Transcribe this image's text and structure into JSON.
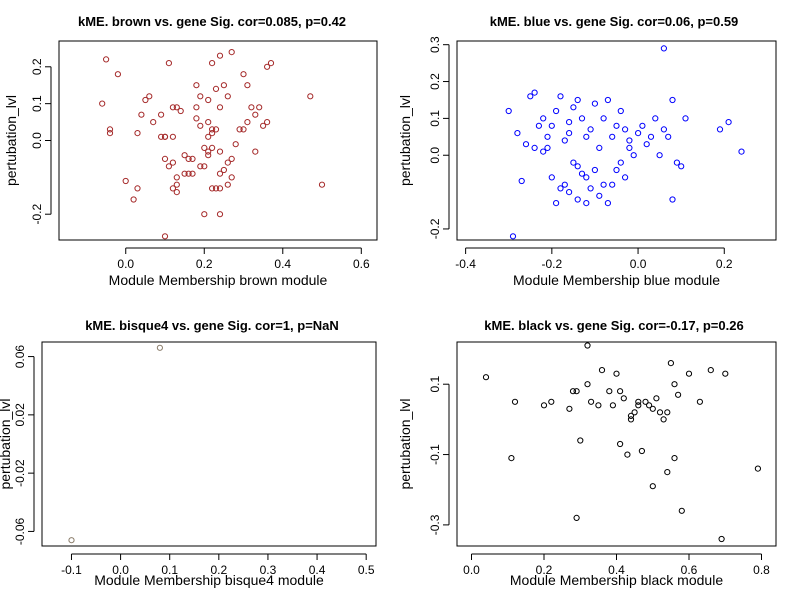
{
  "chart_data": [
    {
      "type": "scatter",
      "title": "kME. brown vs. gene Sig. cor=0.085, p=0.42",
      "xlabel": "Module Membership  brown module",
      "ylabel": "pertubation_lvl",
      "xlim": [
        -0.17,
        0.64
      ],
      "ylim": [
        -0.27,
        0.27
      ],
      "xticks": [
        0.0,
        0.2,
        0.4,
        0.6
      ],
      "xtick_labels": [
        "0.0",
        "0.2",
        "0.4",
        "0.6"
      ],
      "yticks": [
        -0.2,
        0.0,
        0.1,
        0.2
      ],
      "ytick_labels": [
        "-0.2",
        "0.0",
        "0.1",
        "0.2"
      ],
      "grid": false,
      "point_color": "#a52a2a",
      "points": [
        [
          -0.05,
          0.22
        ],
        [
          -0.02,
          0.18
        ],
        [
          -0.06,
          0.1
        ],
        [
          -0.04,
          0.03
        ],
        [
          -0.04,
          0.02
        ],
        [
          0.03,
          0.02
        ],
        [
          0.04,
          0.07
        ],
        [
          0.05,
          0.11
        ],
        [
          0.07,
          0.05
        ],
        [
          0.09,
          0.07
        ],
        [
          0.09,
          0.01
        ],
        [
          0.1,
          0.01
        ],
        [
          0.1,
          0.01
        ],
        [
          0.06,
          0.12
        ],
        [
          0.11,
          0.21
        ],
        [
          0.12,
          0.09
        ],
        [
          0.13,
          0.09
        ],
        [
          0.12,
          0.01
        ],
        [
          0.14,
          0.08
        ],
        [
          0.15,
          -0.04
        ],
        [
          0.16,
          -0.05
        ],
        [
          0.17,
          -0.05
        ],
        [
          0.18,
          0.09
        ],
        [
          0.18,
          0.06
        ],
        [
          0.19,
          0.12
        ],
        [
          0.18,
          0.15
        ],
        [
          0.19,
          0.04
        ],
        [
          0.2,
          -0.02
        ],
        [
          0.21,
          0.05
        ],
        [
          0.21,
          0.11
        ],
        [
          0.22,
          0.21
        ],
        [
          0.23,
          0.14
        ],
        [
          0.22,
          0.03
        ],
        [
          0.21,
          0.01
        ],
        [
          0.22,
          0.02
        ],
        [
          0.24,
          0.09
        ],
        [
          0.24,
          0.23
        ],
        [
          0.25,
          0.15
        ],
        [
          0.26,
          0.12
        ],
        [
          0.24,
          -0.03
        ],
        [
          0.23,
          0.03
        ],
        [
          0.22,
          -0.02
        ],
        [
          0.21,
          -0.03
        ],
        [
          0.21,
          -0.04
        ],
        [
          0.19,
          -0.07
        ],
        [
          0.2,
          -0.07
        ],
        [
          0.17,
          -0.09
        ],
        [
          0.16,
          -0.09
        ],
        [
          0.15,
          -0.09
        ],
        [
          0.13,
          -0.1
        ],
        [
          0.12,
          -0.06
        ],
        [
          0.11,
          -0.07
        ],
        [
          0.13,
          -0.12
        ],
        [
          0.12,
          -0.13
        ],
        [
          0.13,
          -0.14
        ],
        [
          0.1,
          -0.05
        ],
        [
          0.02,
          -0.16
        ],
        [
          0.0,
          -0.11
        ],
        [
          0.1,
          -0.26
        ],
        [
          0.03,
          -0.13
        ],
        [
          0.22,
          -0.13
        ],
        [
          0.23,
          -0.13
        ],
        [
          0.24,
          -0.13
        ],
        [
          0.26,
          -0.12
        ],
        [
          0.27,
          -0.1
        ],
        [
          0.24,
          -0.09
        ],
        [
          0.25,
          -0.08
        ],
        [
          0.26,
          -0.06
        ],
        [
          0.27,
          -0.05
        ],
        [
          0.28,
          -0.01
        ],
        [
          0.29,
          0.03
        ],
        [
          0.3,
          0.03
        ],
        [
          0.31,
          0.05
        ],
        [
          0.32,
          0.09
        ],
        [
          0.33,
          0.07
        ],
        [
          0.34,
          0.09
        ],
        [
          0.33,
          -0.03
        ],
        [
          0.35,
          0.04
        ],
        [
          0.36,
          0.05
        ],
        [
          0.36,
          0.2
        ],
        [
          0.37,
          0.21
        ],
        [
          0.31,
          0.15
        ],
        [
          0.3,
          0.18
        ],
        [
          0.27,
          0.24
        ],
        [
          0.47,
          0.12
        ],
        [
          0.5,
          -0.12
        ],
        [
          0.24,
          -0.2
        ],
        [
          0.2,
          -0.2
        ]
      ]
    },
    {
      "type": "scatter",
      "title": "kME. blue vs. gene Sig. cor=0.06, p=0.59",
      "xlabel": "Module Membership  blue module",
      "ylabel": "pertubation_lvl",
      "xlim": [
        -0.42,
        0.32
      ],
      "ylim": [
        -0.23,
        0.31
      ],
      "xticks": [
        -0.4,
        -0.2,
        0.0,
        0.2
      ],
      "xtick_labels": [
        "-0.4",
        "-0.2",
        "0.0",
        "0.2"
      ],
      "yticks": [
        -0.2,
        0.0,
        0.1,
        0.2,
        0.3
      ],
      "ytick_labels": [
        "-0.2",
        "0.0",
        "0.1",
        "0.2",
        "0.3"
      ],
      "grid": false,
      "point_color": "#0000ff",
      "points": [
        [
          -0.29,
          -0.22
        ],
        [
          -0.27,
          -0.07
        ],
        [
          -0.25,
          0.16
        ],
        [
          -0.24,
          0.17
        ],
        [
          -0.23,
          0.08
        ],
        [
          -0.22,
          0.1
        ],
        [
          -0.21,
          0.05
        ],
        [
          -0.2,
          0.08
        ],
        [
          -0.19,
          0.12
        ],
        [
          -0.18,
          0.16
        ],
        [
          -0.17,
          0.04
        ],
        [
          -0.16,
          0.09
        ],
        [
          -0.15,
          0.13
        ],
        [
          -0.14,
          0.15
        ],
        [
          -0.13,
          0.1
        ],
        [
          -0.12,
          0.05
        ],
        [
          -0.11,
          0.07
        ],
        [
          -0.1,
          0.14
        ],
        [
          -0.09,
          0.02
        ],
        [
          -0.08,
          0.1
        ],
        [
          -0.07,
          0.15
        ],
        [
          -0.06,
          0.05
        ],
        [
          -0.05,
          0.08
        ],
        [
          -0.04,
          0.12
        ],
        [
          -0.03,
          0.07
        ],
        [
          -0.02,
          0.04
        ],
        [
          -0.01,
          0.0
        ],
        [
          0.0,
          0.06
        ],
        [
          0.01,
          0.08
        ],
        [
          0.02,
          0.03
        ],
        [
          -0.24,
          0.02
        ],
        [
          -0.22,
          0.01
        ],
        [
          -0.2,
          -0.06
        ],
        [
          -0.19,
          -0.13
        ],
        [
          -0.18,
          -0.09
        ],
        [
          -0.17,
          -0.08
        ],
        [
          -0.15,
          -0.02
        ],
        [
          -0.14,
          -0.03
        ],
        [
          -0.13,
          -0.05
        ],
        [
          -0.12,
          -0.06
        ],
        [
          -0.11,
          -0.09
        ],
        [
          -0.1,
          -0.04
        ],
        [
          -0.09,
          -0.11
        ],
        [
          -0.08,
          -0.08
        ],
        [
          -0.07,
          -0.13
        ],
        [
          -0.06,
          -0.08
        ],
        [
          -0.05,
          -0.04
        ],
        [
          -0.04,
          -0.02
        ],
        [
          -0.03,
          -0.06
        ],
        [
          -0.02,
          0.02
        ],
        [
          0.03,
          0.05
        ],
        [
          0.04,
          0.1
        ],
        [
          0.05,
          0.0
        ],
        [
          0.06,
          0.07
        ],
        [
          0.07,
          0.05
        ],
        [
          0.08,
          0.15
        ],
        [
          0.09,
          -0.02
        ],
        [
          0.1,
          -0.03
        ],
        [
          0.11,
          0.1
        ],
        [
          -0.3,
          0.12
        ],
        [
          -0.26,
          0.03
        ],
        [
          -0.28,
          0.06
        ],
        [
          -0.21,
          0.02
        ],
        [
          -0.16,
          0.06
        ],
        [
          0.06,
          0.29
        ],
        [
          0.19,
          0.07
        ],
        [
          0.21,
          0.09
        ],
        [
          0.24,
          0.01
        ],
        [
          0.08,
          -0.12
        ],
        [
          -0.12,
          -0.13
        ],
        [
          -0.14,
          -0.12
        ],
        [
          -0.16,
          -0.1
        ]
      ]
    },
    {
      "type": "scatter",
      "title": "kME. bisque4 vs. gene Sig. cor=1, p=NaN",
      "xlabel": "Module Membership  bisque4 module",
      "ylabel": "pertubation_lvl",
      "xlim": [
        -0.16,
        0.52
      ],
      "ylim": [
        -0.07,
        0.07
      ],
      "xticks": [
        -0.1,
        0.0,
        0.1,
        0.2,
        0.3,
        0.4,
        0.5
      ],
      "xtick_labels": [
        "-0.1",
        "0.0",
        "0.1",
        "0.2",
        "0.3",
        "0.4",
        "0.5"
      ],
      "yticks": [
        -0.06,
        -0.02,
        0.02,
        0.06
      ],
      "ytick_labels": [
        "-0.06",
        "-0.02",
        "0.02",
        "0.06"
      ],
      "grid": false,
      "point_color": "#8b7d6b",
      "points": [
        [
          -0.1,
          -0.066
        ],
        [
          0.08,
          0.066
        ]
      ]
    },
    {
      "type": "scatter",
      "title": "kME. black vs. gene Sig. cor=-0.17, p=0.26",
      "xlabel": "Module Membership  black module",
      "ylabel": "pertubation_lvl",
      "xlim": [
        -0.04,
        0.84
      ],
      "ylim": [
        -0.36,
        0.22
      ],
      "xticks": [
        0.0,
        0.2,
        0.4,
        0.6,
        0.8
      ],
      "xtick_labels": [
        "0.0",
        "0.2",
        "0.4",
        "0.6",
        "0.8"
      ],
      "yticks": [
        -0.3,
        -0.1,
        0.1
      ],
      "ytick_labels": [
        "-0.3",
        "-0.1",
        "0.1"
      ],
      "grid": false,
      "point_color": "#000000",
      "points": [
        [
          0.04,
          0.12
        ],
        [
          0.11,
          -0.11
        ],
        [
          0.12,
          0.05
        ],
        [
          0.2,
          0.04
        ],
        [
          0.22,
          0.05
        ],
        [
          0.27,
          0.03
        ],
        [
          0.28,
          0.08
        ],
        [
          0.29,
          0.08
        ],
        [
          0.3,
          -0.06
        ],
        [
          0.32,
          0.1
        ],
        [
          0.33,
          0.05
        ],
        [
          0.35,
          0.04
        ],
        [
          0.36,
          0.14
        ],
        [
          0.38,
          0.08
        ],
        [
          0.39,
          0.04
        ],
        [
          0.4,
          0.13
        ],
        [
          0.41,
          0.08
        ],
        [
          0.42,
          0.06
        ],
        [
          0.43,
          -0.1
        ],
        [
          0.44,
          0.0
        ],
        [
          0.45,
          0.02
        ],
        [
          0.46,
          0.04
        ],
        [
          0.47,
          -0.09
        ],
        [
          0.48,
          0.05
        ],
        [
          0.49,
          0.04
        ],
        [
          0.5,
          0.03
        ],
        [
          0.51,
          0.06
        ],
        [
          0.52,
          0.02
        ],
        [
          0.53,
          0.0
        ],
        [
          0.54,
          0.02
        ],
        [
          0.55,
          0.16
        ],
        [
          0.56,
          0.1
        ],
        [
          0.57,
          0.07
        ],
        [
          0.58,
          -0.26
        ],
        [
          0.6,
          0.13
        ],
        [
          0.63,
          0.05
        ],
        [
          0.66,
          0.14
        ],
        [
          0.69,
          -0.34
        ],
        [
          0.7,
          0.13
        ],
        [
          0.79,
          -0.14
        ],
        [
          0.29,
          -0.28
        ],
        [
          0.32,
          0.21
        ],
        [
          0.54,
          -0.15
        ],
        [
          0.56,
          -0.11
        ],
        [
          0.5,
          -0.19
        ],
        [
          0.41,
          -0.07
        ],
        [
          0.44,
          0.01
        ],
        [
          0.46,
          0.05
        ]
      ]
    }
  ]
}
